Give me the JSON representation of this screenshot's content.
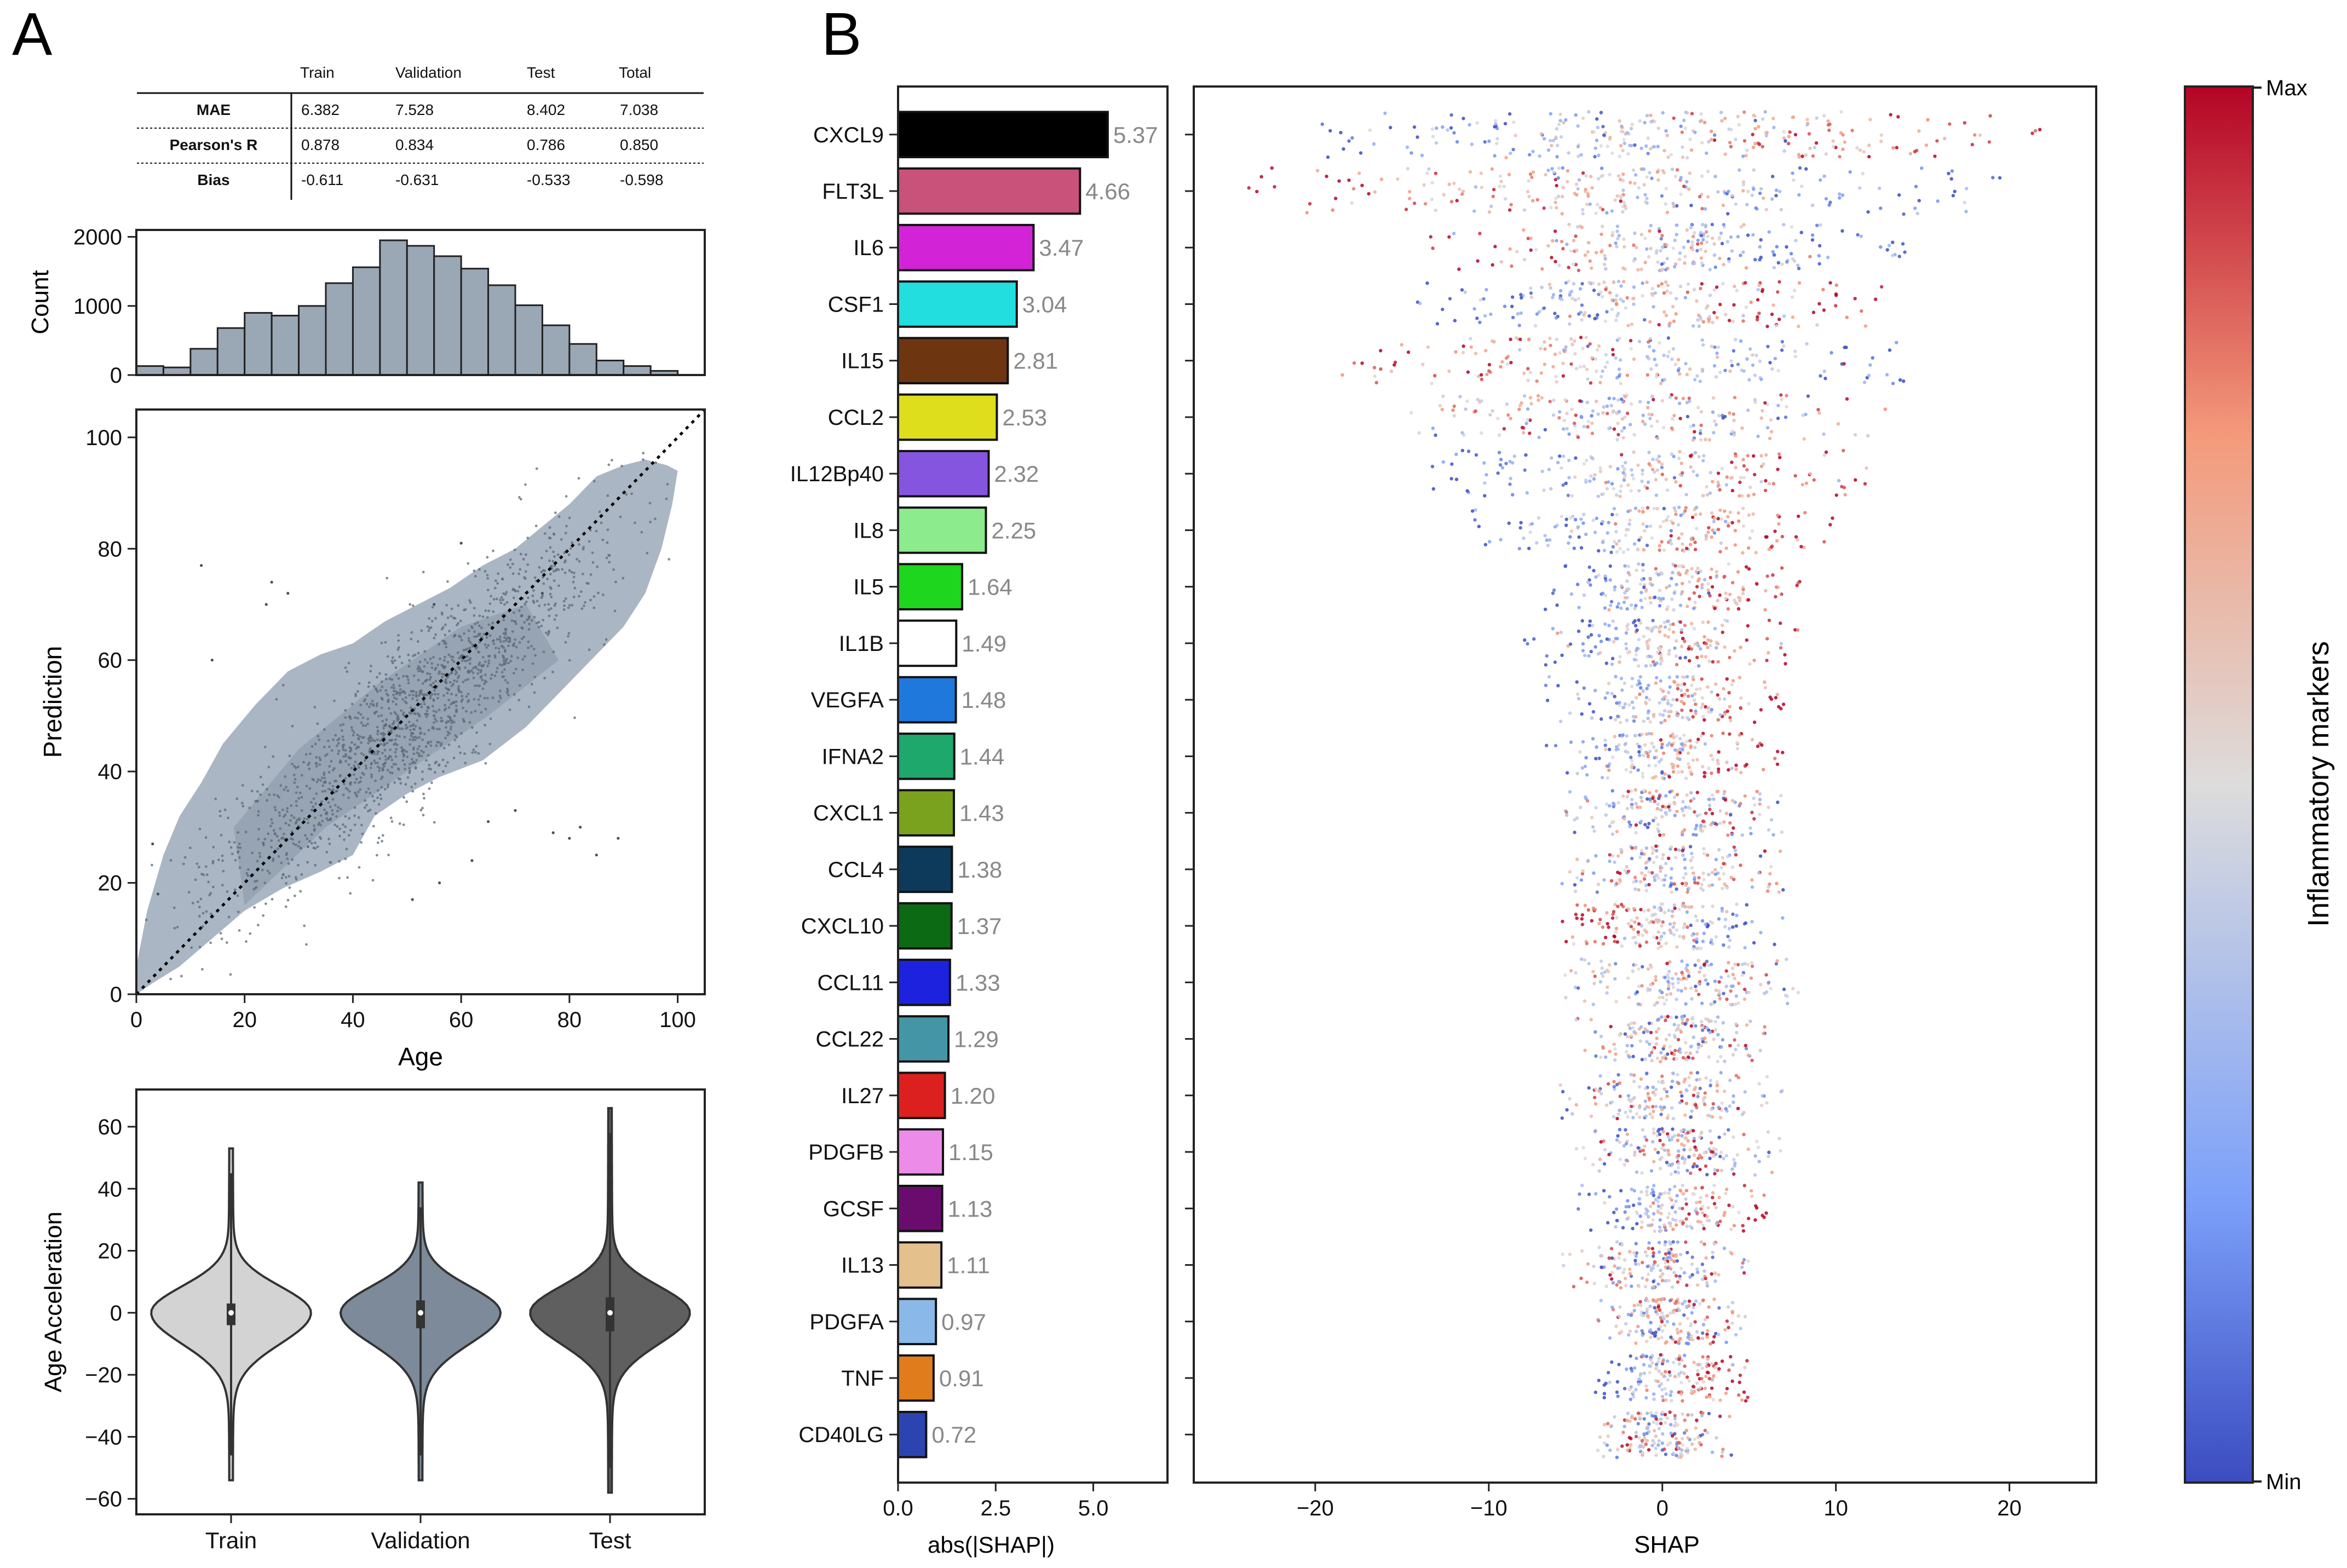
{
  "panels": {
    "a_label": "A",
    "b_label": "B"
  },
  "metrics_table": {
    "columns": [
      "",
      "Train",
      "Validation",
      "Test",
      "Total"
    ],
    "rows": [
      {
        "label": "MAE",
        "values": [
          "6.382",
          "7.528",
          "8.402",
          "7.038"
        ]
      },
      {
        "label": "Pearson's R",
        "values": [
          "0.878",
          "0.834",
          "0.786",
          "0.850"
        ]
      },
      {
        "label": "Bias",
        "values": [
          "-0.611",
          "-0.631",
          "-0.533",
          "-0.598"
        ]
      }
    ]
  },
  "colors": {
    "hist_fill": "#9aa7b5",
    "kde_fill": "#a9b5c2",
    "violin_train": "#d3d3d3",
    "violin_validation": "#7c8a9a",
    "violin_test": "#5f5f5f",
    "cmap_min": "#3b4cc0",
    "cmap_mid": "#dddcdc",
    "cmap_max": "#b40426"
  },
  "chart_data": [
    {
      "id": "histogram",
      "type": "bar",
      "title": "",
      "xlabel": "",
      "ylabel": "Count",
      "bin_edges": [
        0,
        5,
        10,
        15,
        20,
        25,
        30,
        35,
        40,
        45,
        50,
        55,
        60,
        65,
        70,
        75,
        80,
        85,
        90,
        95,
        100
      ],
      "values": [
        130,
        110,
        380,
        680,
        900,
        860,
        1000,
        1330,
        1560,
        1950,
        1870,
        1720,
        1540,
        1300,
        1010,
        720,
        450,
        210,
        130,
        60
      ],
      "xlim": [
        0,
        105
      ],
      "ylim": [
        0,
        2100
      ],
      "yticks": [
        0,
        1000,
        2000
      ]
    },
    {
      "id": "scatter",
      "type": "scatter",
      "title": "",
      "xlabel": "Age",
      "ylabel": "Prediction",
      "xlim": [
        0,
        105
      ],
      "ylim": [
        0,
        105
      ],
      "xticks": [
        0,
        20,
        40,
        60,
        80,
        100
      ],
      "yticks": [
        0,
        20,
        40,
        60,
        80,
        100
      ],
      "identity_line": [
        [
          0,
          0
        ],
        [
          105,
          105
        ]
      ],
      "kde_outline": [
        [
          0,
          0
        ],
        [
          3,
          2
        ],
        [
          8,
          5
        ],
        [
          14,
          10
        ],
        [
          20,
          15
        ],
        [
          27,
          19
        ],
        [
          34,
          22
        ],
        [
          40,
          25
        ],
        [
          44,
          32
        ],
        [
          50,
          36
        ],
        [
          56,
          39
        ],
        [
          64,
          42
        ],
        [
          72,
          48
        ],
        [
          78,
          54
        ],
        [
          84,
          60
        ],
        [
          90,
          66
        ],
        [
          94,
          72
        ],
        [
          97,
          80
        ],
        [
          99,
          88
        ],
        [
          100,
          94
        ],
        [
          98,
          95
        ],
        [
          94,
          96
        ],
        [
          90,
          95
        ],
        [
          85,
          93
        ],
        [
          80,
          88
        ],
        [
          75,
          84
        ],
        [
          70,
          80
        ],
        [
          64,
          77
        ],
        [
          58,
          73
        ],
        [
          52,
          70
        ],
        [
          46,
          67
        ],
        [
          40,
          63
        ],
        [
          34,
          61
        ],
        [
          28,
          58
        ],
        [
          22,
          52
        ],
        [
          16,
          45
        ],
        [
          12,
          38
        ],
        [
          8,
          32
        ],
        [
          5,
          25
        ],
        [
          2,
          15
        ],
        [
          0,
          5
        ]
      ],
      "point_model": {
        "slope": 0.82,
        "intercept": 8.2,
        "n_points": 1600
      },
      "outliers": [
        [
          14,
          60
        ],
        [
          12,
          77
        ],
        [
          25,
          74
        ],
        [
          28,
          72
        ],
        [
          24,
          70
        ],
        [
          80,
          28
        ],
        [
          82,
          30
        ],
        [
          77,
          29
        ],
        [
          70,
          33
        ],
        [
          65,
          31
        ],
        [
          3,
          27
        ],
        [
          4,
          18
        ],
        [
          60,
          81
        ],
        [
          75,
          72
        ],
        [
          56,
          20
        ],
        [
          62,
          24
        ],
        [
          85,
          25
        ],
        [
          55,
          70
        ],
        [
          51,
          17
        ],
        [
          89,
          28
        ]
      ]
    },
    {
      "id": "violins",
      "type": "violin",
      "title": "",
      "xlabel": "",
      "ylabel": "Age Acceleration",
      "categories": [
        "Train",
        "Validation",
        "Test"
      ],
      "ylim": [
        -65,
        72
      ],
      "yticks": [
        -60,
        -40,
        -20,
        0,
        20,
        40,
        60
      ],
      "series": [
        {
          "name": "Train",
          "min": -54,
          "max": 53,
          "q1": -4,
          "median": 0,
          "q3": 3
        },
        {
          "name": "Validation",
          "min": -54,
          "max": 42,
          "q1": -5,
          "median": 0,
          "q3": 4
        },
        {
          "name": "Test",
          "min": -58,
          "max": 66,
          "q1": -6,
          "median": 0,
          "q3": 5
        }
      ]
    },
    {
      "id": "importance",
      "type": "bar",
      "orientation": "horizontal",
      "title": "",
      "xlabel": "abs(|SHAP|)",
      "ylabel": "",
      "xlim": [
        0,
        6.9
      ],
      "xticks": [
        "0.0",
        "2.5",
        "5.0"
      ],
      "categories": [
        "CXCL9",
        "FLT3L",
        "IL6",
        "CSF1",
        "IL15",
        "CCL2",
        "IL12Bp40",
        "IL8",
        "IL5",
        "IL1B",
        "VEGFA",
        "IFNA2",
        "CXCL1",
        "CCL4",
        "CXCL10",
        "CCL11",
        "CCL22",
        "IL27",
        "PDGFB",
        "GCSF",
        "IL13",
        "PDGFA",
        "TNF",
        "CD40LG"
      ],
      "values": [
        5.37,
        4.66,
        3.47,
        3.04,
        2.81,
        2.53,
        2.32,
        2.25,
        1.64,
        1.49,
        1.48,
        1.44,
        1.43,
        1.38,
        1.37,
        1.33,
        1.29,
        1.2,
        1.15,
        1.13,
        1.11,
        0.97,
        0.91,
        0.72
      ],
      "labels": [
        "5.37",
        "4.66",
        "3.47",
        "3.04",
        "2.81",
        "2.53",
        "2.32",
        "2.25",
        "1.64",
        "1.49",
        "1.48",
        "1.44",
        "1.43",
        "1.38",
        "1.37",
        "1.33",
        "1.29",
        "1.20",
        "1.15",
        "1.13",
        "1.11",
        "0.97",
        "0.91",
        "0.72"
      ],
      "bar_colors": [
        "#000000",
        "#c9527a",
        "#d224d6",
        "#22dede",
        "#6e3511",
        "#dede1c",
        "#8655e0",
        "#8ceb8c",
        "#1ed61e",
        "#ffffff",
        "#1f78dc",
        "#1ea86c",
        "#7aa21e",
        "#0d3a5a",
        "#0c6a14",
        "#1c22de",
        "#4496a6",
        "#dc2020",
        "#ec8ce8",
        "#6a0c6e",
        "#e4c08c",
        "#8ab8e8",
        "#e07c1c",
        "#2c44b0"
      ]
    },
    {
      "id": "beeswarm",
      "type": "scatter",
      "title": "",
      "xlabel": "SHAP",
      "ylabel": "",
      "xlim": [
        -27,
        25
      ],
      "xticks": [
        -20,
        -10,
        0,
        10,
        20
      ],
      "color_mode": [
        "pos",
        "neg",
        "neg",
        "pos",
        "neg",
        "mix",
        "pos",
        "pos",
        "pos",
        "pos",
        "pos",
        "pos",
        "mix",
        "mix",
        "neg",
        "mix",
        "mix",
        "mix",
        "mix",
        "pos",
        "mix",
        "mix",
        "pos",
        "mix"
      ],
      "ranges": [
        [
          -20,
          22
        ],
        [
          -24,
          20
        ],
        [
          -14,
          14
        ],
        [
          -15,
          13
        ],
        [
          -19,
          14
        ],
        [
          -15,
          13
        ],
        [
          -14,
          12
        ],
        [
          -11,
          10
        ],
        [
          -7,
          8
        ],
        [
          -8,
          8
        ],
        [
          -7,
          7
        ],
        [
          -7,
          7
        ],
        [
          -6,
          7
        ],
        [
          -6,
          7
        ],
        [
          -6,
          7
        ],
        [
          -6,
          8
        ],
        [
          -5,
          6
        ],
        [
          -6,
          7
        ],
        [
          -5,
          7
        ],
        [
          -5,
          6
        ],
        [
          -6,
          5
        ],
        [
          -4,
          5
        ],
        [
          -4,
          5
        ],
        [
          -4,
          4
        ]
      ],
      "colorbar": {
        "label": "Inflammatory markers",
        "max_label": "Max",
        "min_label": "Min"
      }
    }
  ]
}
